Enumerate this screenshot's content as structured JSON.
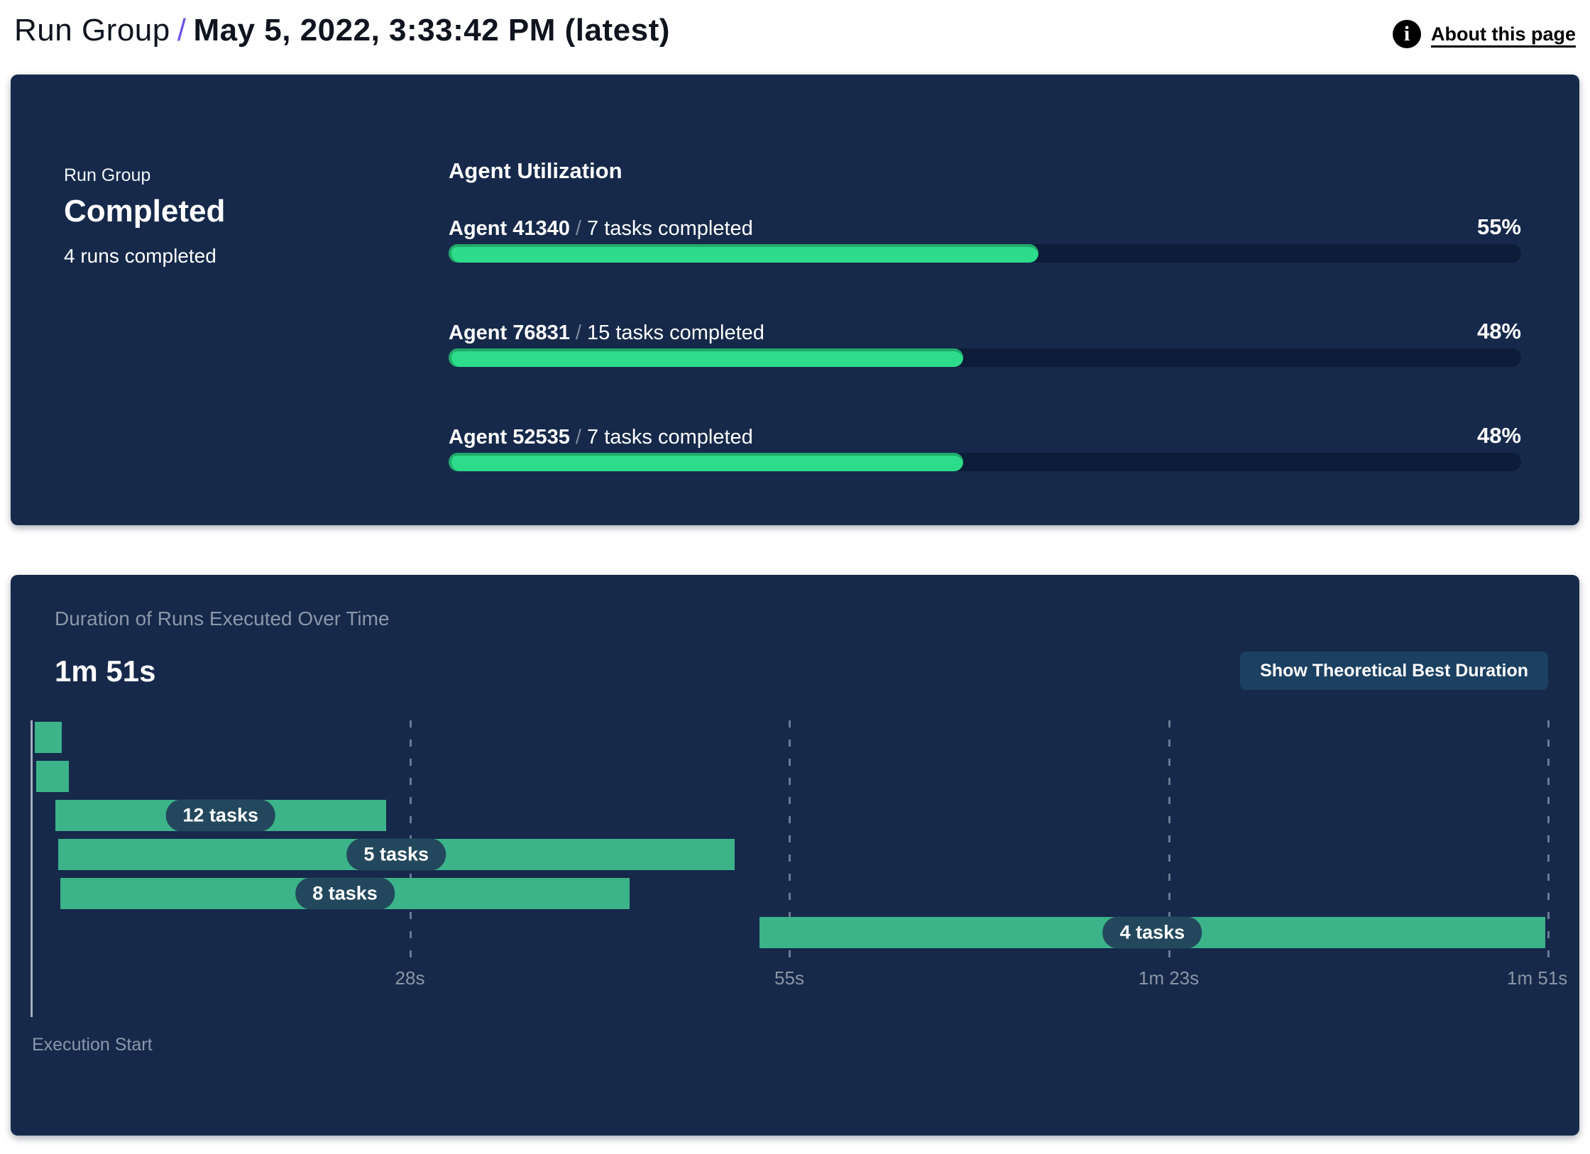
{
  "theme": {
    "accent": "#6C55EA",
    "panel_bg": "#16294A",
    "track": "#0D1C38",
    "util_green": "#2DDC8A",
    "util_green_edge": "#21A96B",
    "gantt_green": "#3CB389",
    "pill_bg": "#23485D",
    "button_bg": "#1C4061",
    "muted_text": "#8B98AB",
    "tick_text": "#8A95A6",
    "header_text": "#10141F"
  },
  "header": {
    "breadcrumb": "Run Group",
    "separator": "/",
    "title": "May 5, 2022, 3:33:42 PM (latest)",
    "about_link": "About this page",
    "info_icon": "info-icon"
  },
  "status_panel": {
    "eyebrow": "Run Group",
    "status": "Completed",
    "subtext": "4 runs completed",
    "utilization_title": "Agent Utilization",
    "agents": [
      {
        "name": "Agent 41340",
        "separator": "/",
        "tasks": "7 tasks completed",
        "percent": 55
      },
      {
        "name": "Agent 76831",
        "separator": "/",
        "tasks": "15 tasks completed",
        "percent": 48
      },
      {
        "name": "Agent 52535",
        "separator": "/",
        "tasks": "7 tasks completed",
        "percent": 48
      }
    ]
  },
  "duration_panel": {
    "title": "Duration of Runs Executed Over Time",
    "total_duration": "1m 51s",
    "button_label": "Show Theoretical Best Duration",
    "axis_caption": "Execution Start"
  },
  "chart_data": [
    {
      "type": "bar",
      "title": "Agent Utilization",
      "categories": [
        "Agent 41340",
        "Agent 76831",
        "Agent 52535"
      ],
      "values": [
        55,
        48,
        48
      ],
      "value_unit": "%",
      "annotations": [
        "7 tasks completed",
        "15 tasks completed",
        "7 tasks completed"
      ],
      "xlim": [
        0,
        100
      ]
    },
    {
      "type": "gantt",
      "title": "Duration of Runs Executed Over Time",
      "total_duration_label": "1m 51s",
      "time_axis": {
        "min_s": 0,
        "max_s": 111,
        "tick_labels": [
          "28s",
          "55s",
          "1m 23s",
          "1m 51s"
        ],
        "tick_positions_s": [
          27.75,
          55.5,
          83.25,
          111
        ],
        "axis_label": "Execution Start",
        "gridlines": "dashed-vertical"
      },
      "bars": [
        {
          "start_s": 0.3,
          "end_s": 2.3,
          "tasks": null,
          "label": ""
        },
        {
          "start_s": 0.4,
          "end_s": 2.8,
          "tasks": null,
          "label": ""
        },
        {
          "start_s": 1.8,
          "end_s": 26.0,
          "tasks": 12,
          "label": "12 tasks"
        },
        {
          "start_s": 2.0,
          "end_s": 51.5,
          "tasks": 5,
          "label": "5 tasks"
        },
        {
          "start_s": 2.2,
          "end_s": 43.8,
          "tasks": 8,
          "label": "8 tasks"
        },
        {
          "start_s": 53.3,
          "end_s": 110.8,
          "tasks": 4,
          "label": "4 tasks"
        }
      ]
    }
  ]
}
